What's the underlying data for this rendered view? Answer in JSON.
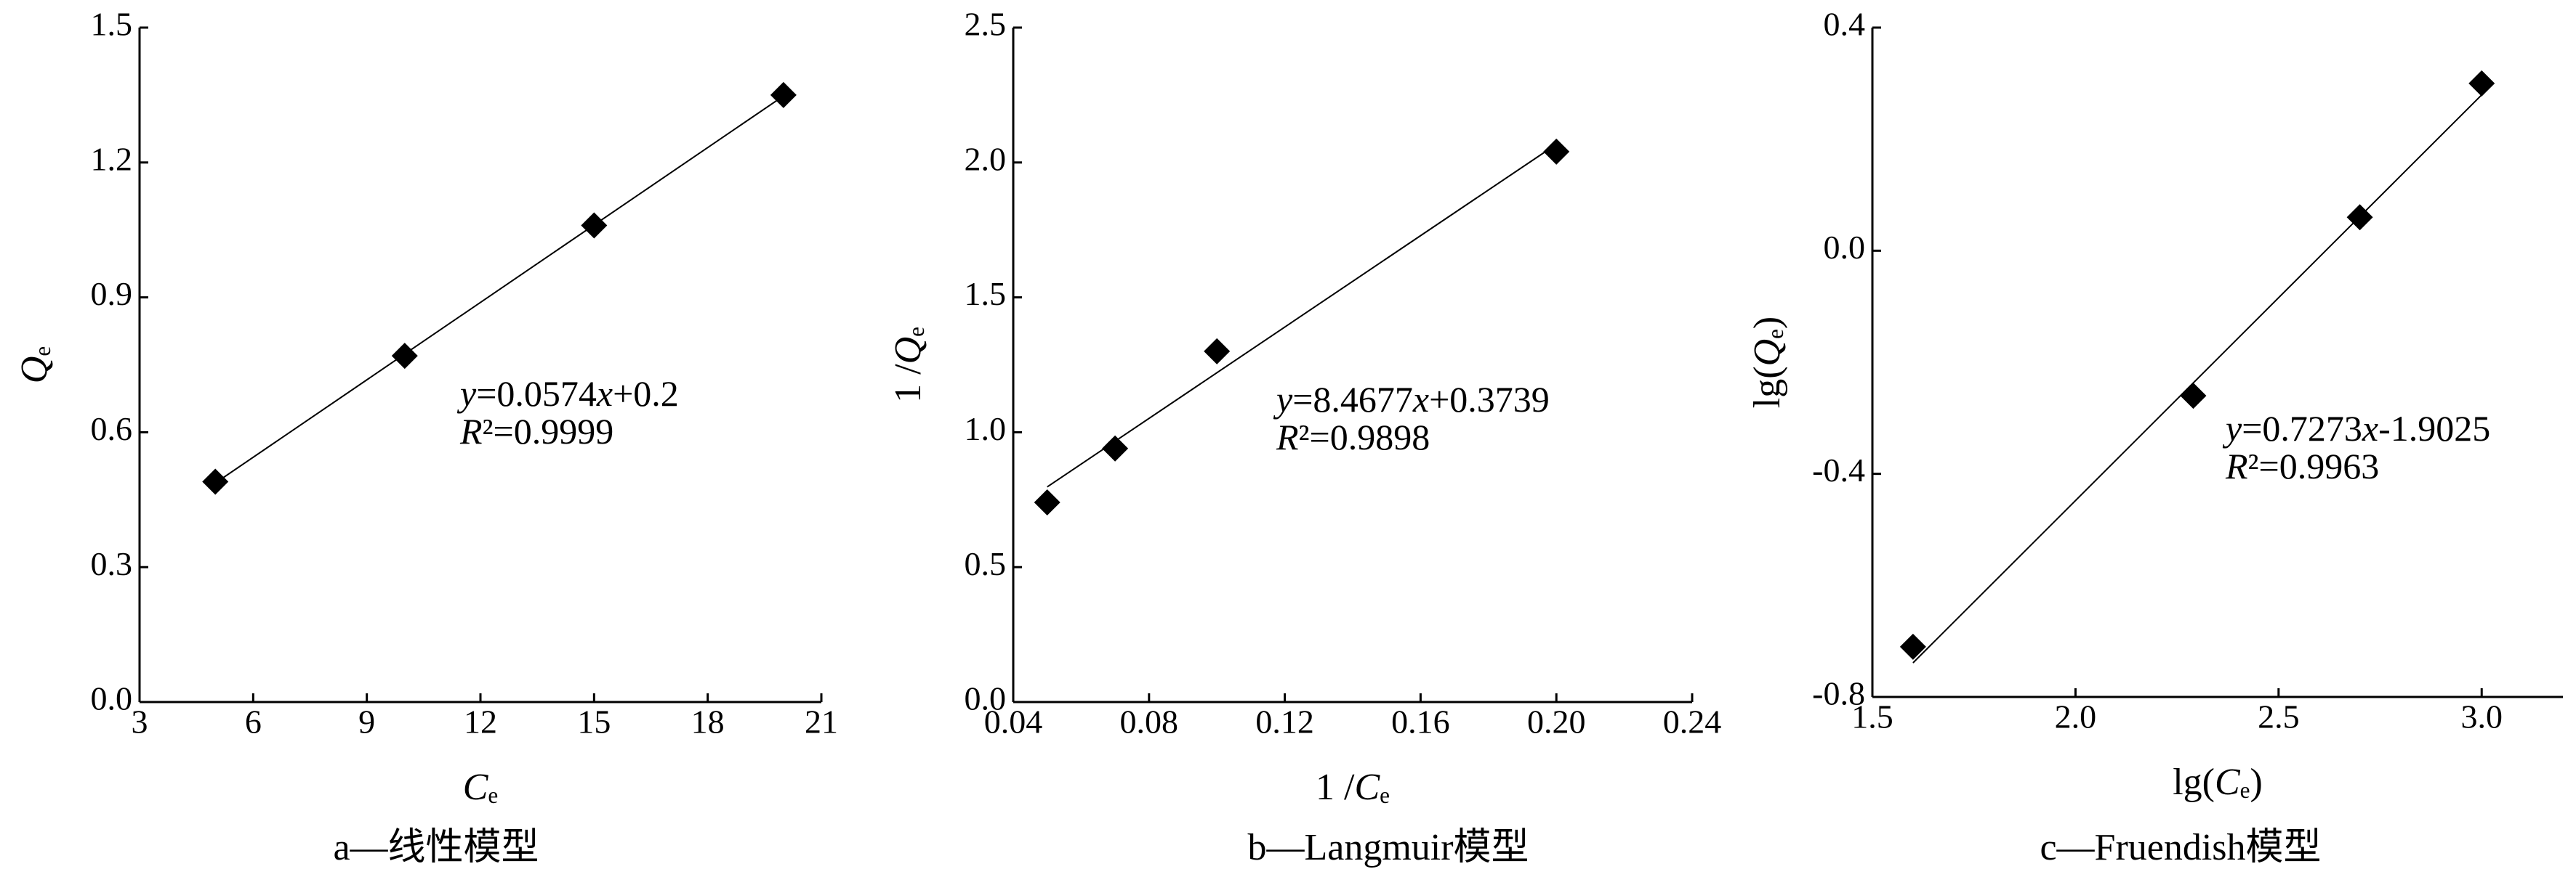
{
  "chart_data": [
    {
      "type": "scatter",
      "caption": "a—线性模型",
      "xlabel": [
        {
          "text": "C",
          "style": "italic"
        },
        {
          "text": "e",
          "style": "sub"
        }
      ],
      "ylabel": [
        {
          "text": "Q",
          "style": "italic"
        },
        {
          "text": "e",
          "style": "sub"
        }
      ],
      "x": [
        5,
        10,
        15,
        20
      ],
      "values": [
        0.49,
        0.77,
        1.06,
        1.35
      ],
      "color": "#000000",
      "xlim": [
        3,
        21
      ],
      "xticks": [
        3,
        6,
        9,
        12,
        15,
        18,
        21
      ],
      "ylim": [
        0,
        1.5
      ],
      "yticks": [
        {
          "value": 0,
          "label": "0.0"
        },
        0.3,
        0.6,
        0.9,
        1.2,
        1.5
      ],
      "fit": {
        "slope": 0.0574,
        "intercept": 0.2
      },
      "equation": [
        {
          "text": "y",
          "style": "italic"
        },
        {
          "text": "=0.0574"
        },
        {
          "text": "x",
          "style": "italic"
        },
        {
          "text": "+0.2"
        }
      ],
      "r2": [
        {
          "text": "R",
          "style": "italic"
        },
        {
          "text": "²=0.9999"
        }
      ]
    },
    {
      "type": "scatter",
      "caption": "b—Langmuir模型",
      "xlabel": [
        {
          "text": "1 /"
        },
        {
          "text": "C",
          "style": "italic"
        },
        {
          "text": "e",
          "style": "sub"
        }
      ],
      "ylabel": [
        {
          "text": "1 /"
        },
        {
          "text": "Q",
          "style": "italic"
        },
        {
          "text": "e",
          "style": "sub"
        }
      ],
      "x": [
        0.05,
        0.07,
        0.1,
        0.2
      ],
      "values": [
        0.74,
        0.94,
        1.3,
        2.04
      ],
      "color": "#000000",
      "xlim": [
        0.04,
        0.24
      ],
      "xticks": [
        0.04,
        0.08,
        0.12,
        0.16,
        {
          "value": 0.2,
          "label": "0.20"
        },
        0.24
      ],
      "ylim": [
        0,
        2.5
      ],
      "yticks": [
        {
          "value": 0,
          "label": "0.0"
        },
        0.5,
        {
          "value": 1,
          "label": "1.0"
        },
        1.5,
        {
          "value": 2,
          "label": "2.0"
        },
        2.5
      ],
      "fit": {
        "slope": 8.4677,
        "intercept": 0.3739
      },
      "equation": [
        {
          "text": "y",
          "style": "italic"
        },
        {
          "text": "=8.4677"
        },
        {
          "text": "x",
          "style": "italic"
        },
        {
          "text": "+0.3739"
        }
      ],
      "r2": [
        {
          "text": "R",
          "style": "italic"
        },
        {
          "text": "²=0.9898"
        }
      ]
    },
    {
      "type": "scatter",
      "caption": "c—Fruendish模型",
      "xlabel": [
        {
          "text": "lg("
        },
        {
          "text": "C",
          "style": "italic"
        },
        {
          "text": "e",
          "style": "sub"
        },
        {
          "text": ")"
        }
      ],
      "ylabel": [
        {
          "text": "lg("
        },
        {
          "text": "Q",
          "style": "italic"
        },
        {
          "text": "e",
          "style": "sub"
        },
        {
          "text": ")"
        }
      ],
      "x": [
        1.6,
        2.29,
        2.7,
        3.0
      ],
      "values": [
        -0.71,
        -0.26,
        0.06,
        0.3
      ],
      "color": "#000000",
      "xlim": [
        1.5,
        3.2
      ],
      "xticks": [
        1.5,
        {
          "value": 2,
          "label": "2.0"
        },
        2.5,
        {
          "value": 3,
          "label": "3.0"
        }
      ],
      "ylim": [
        -0.8,
        0.4
      ],
      "yticks": [
        -0.8,
        -0.4,
        {
          "value": 0,
          "label": "0.0"
        },
        0.4
      ],
      "fit": {
        "slope": 0.7273,
        "intercept": -1.9025
      },
      "equation": [
        {
          "text": "y",
          "style": "italic"
        },
        {
          "text": "=0.7273"
        },
        {
          "text": "x",
          "style": "italic"
        },
        {
          "text": "-1.9025"
        }
      ],
      "r2": [
        {
          "text": "R",
          "style": "italic"
        },
        {
          "text": "²=0.9963"
        }
      ]
    }
  ]
}
